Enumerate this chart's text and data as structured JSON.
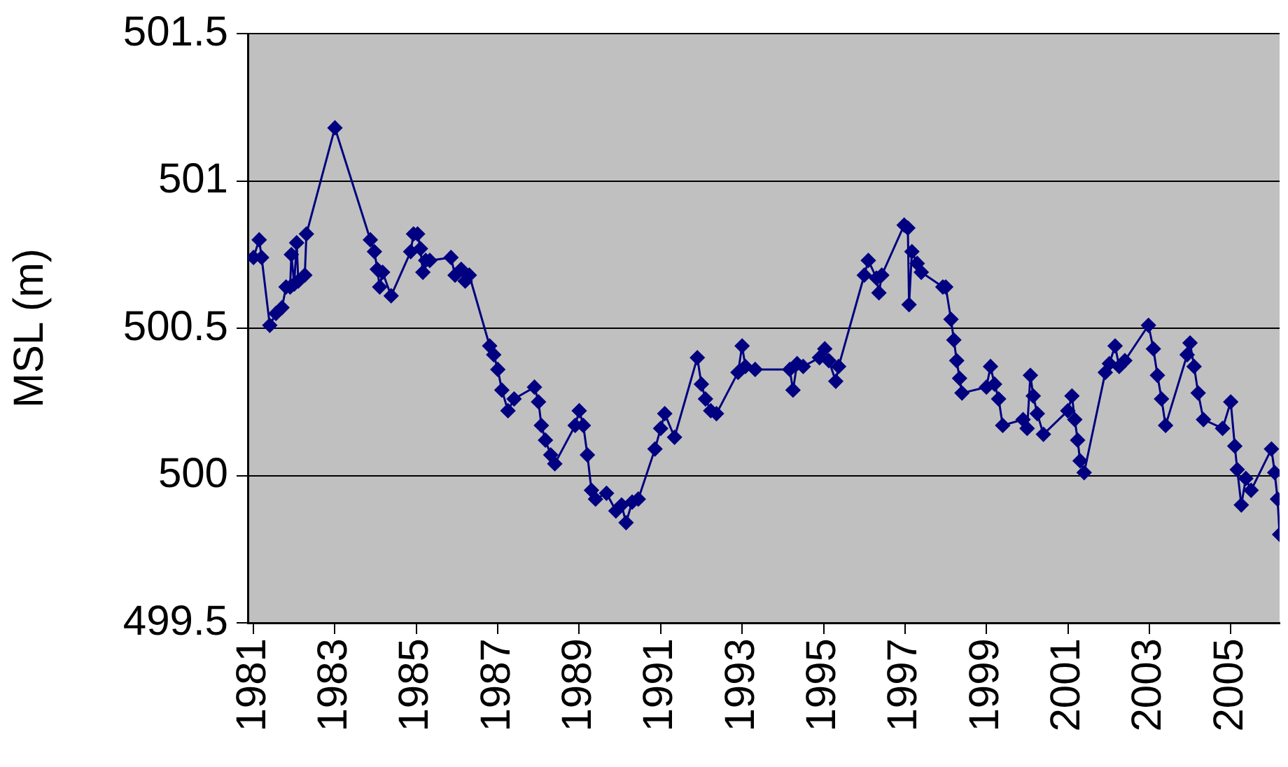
{
  "chart_data": {
    "type": "line",
    "ylabel": "MSL (m)",
    "marker": "diamond",
    "line_style": "solid",
    "grid": "y",
    "legend": false,
    "xlim": [
      1980.86,
      2006.2
    ],
    "xticks": [
      1981,
      1983,
      1985,
      1987,
      1989,
      1991,
      1993,
      1995,
      1997,
      1999,
      2001,
      2003,
      2005
    ],
    "ylim": [
      499.5,
      501.5
    ],
    "yticks": [
      499.5,
      500,
      500.5,
      501,
      501.5
    ],
    "series": [
      {
        "color": "#000080",
        "x": [
          1981.0,
          1981.14,
          1981.2,
          1981.4,
          1981.55,
          1981.7,
          1981.8,
          1981.9,
          1981.93,
          1982.0,
          1982.06,
          1982.1,
          1982.26,
          1982.3,
          1983.0,
          1983.87,
          1983.97,
          1984.04,
          1984.1,
          1984.17,
          1984.38,
          1984.86,
          1984.93,
          1985.03,
          1985.1,
          1985.16,
          1985.23,
          1985.33,
          1985.85,
          1985.95,
          1986.1,
          1986.2,
          1986.3,
          1986.8,
          1986.9,
          1987.0,
          1987.1,
          1987.25,
          1987.4,
          1987.9,
          1988.0,
          1988.07,
          1988.17,
          1988.3,
          1988.4,
          1988.9,
          1989.0,
          1989.1,
          1989.2,
          1989.3,
          1989.4,
          1989.67,
          1989.9,
          1990.04,
          1990.15,
          1990.3,
          1990.45,
          1990.86,
          1991.0,
          1991.1,
          1991.34,
          1991.9,
          1992.0,
          1992.1,
          1992.23,
          1992.37,
          1992.9,
          1993.0,
          1993.08,
          1993.32,
          1994.17,
          1994.25,
          1994.35,
          1994.5,
          1994.9,
          1995.03,
          1995.13,
          1995.3,
          1995.37,
          1996.0,
          1996.1,
          1996.3,
          1996.36,
          1996.43,
          1996.98,
          1997.07,
          1997.1,
          1997.17,
          1997.3,
          1997.4,
          1997.93,
          1998.0,
          1998.13,
          1998.2,
          1998.27,
          1998.34,
          1998.4,
          1999.0,
          1999.1,
          1999.2,
          1999.3,
          1999.4,
          1999.9,
          2000.0,
          2000.08,
          2000.15,
          2000.25,
          2000.4,
          2001.0,
          2001.1,
          2001.17,
          2001.24,
          2001.3,
          2001.4,
          2001.92,
          2002.02,
          2002.16,
          2002.26,
          2002.4,
          2002.98,
          2003.1,
          2003.2,
          2003.3,
          2003.4,
          2003.93,
          2004.0,
          2004.1,
          2004.2,
          2004.33,
          2004.8,
          2005.0,
          2005.1,
          2005.16,
          2005.26,
          2005.37,
          2005.5,
          2006.0,
          2006.08,
          2006.15,
          2006.2
        ],
        "values": [
          500.74,
          500.8,
          500.74,
          500.51,
          500.55,
          500.57,
          500.64,
          500.64,
          500.75,
          500.65,
          500.79,
          500.66,
          500.68,
          500.82,
          501.18,
          500.8,
          500.76,
          500.7,
          500.64,
          500.69,
          500.61,
          500.76,
          500.82,
          500.82,
          500.77,
          500.69,
          500.73,
          500.73,
          500.74,
          500.68,
          500.7,
          500.66,
          500.68,
          500.44,
          500.41,
          500.36,
          500.29,
          500.22,
          500.26,
          500.3,
          500.25,
          500.17,
          500.12,
          500.07,
          500.04,
          500.17,
          500.22,
          500.17,
          500.07,
          499.95,
          499.92,
          499.94,
          499.88,
          499.9,
          499.84,
          499.91,
          499.92,
          500.09,
          500.16,
          500.21,
          500.13,
          500.4,
          500.31,
          500.26,
          500.22,
          500.21,
          500.35,
          500.44,
          500.37,
          500.36,
          500.36,
          500.29,
          500.38,
          500.37,
          500.4,
          500.43,
          500.39,
          500.32,
          500.37,
          500.68,
          500.73,
          500.67,
          500.62,
          500.68,
          500.85,
          500.84,
          500.58,
          500.76,
          500.72,
          500.69,
          500.64,
          500.64,
          500.53,
          500.46,
          500.39,
          500.33,
          500.28,
          500.3,
          500.37,
          500.31,
          500.26,
          500.17,
          500.19,
          500.16,
          500.34,
          500.27,
          500.21,
          500.14,
          500.22,
          500.27,
          500.19,
          500.12,
          500.05,
          500.01,
          500.35,
          500.38,
          500.44,
          500.37,
          500.39,
          500.51,
          500.43,
          500.34,
          500.26,
          500.17,
          500.41,
          500.45,
          500.37,
          500.28,
          500.19,
          500.16,
          500.25,
          500.1,
          500.02,
          499.9,
          499.99,
          499.95,
          500.09,
          500.01,
          499.92,
          499.8
        ]
      }
    ]
  }
}
